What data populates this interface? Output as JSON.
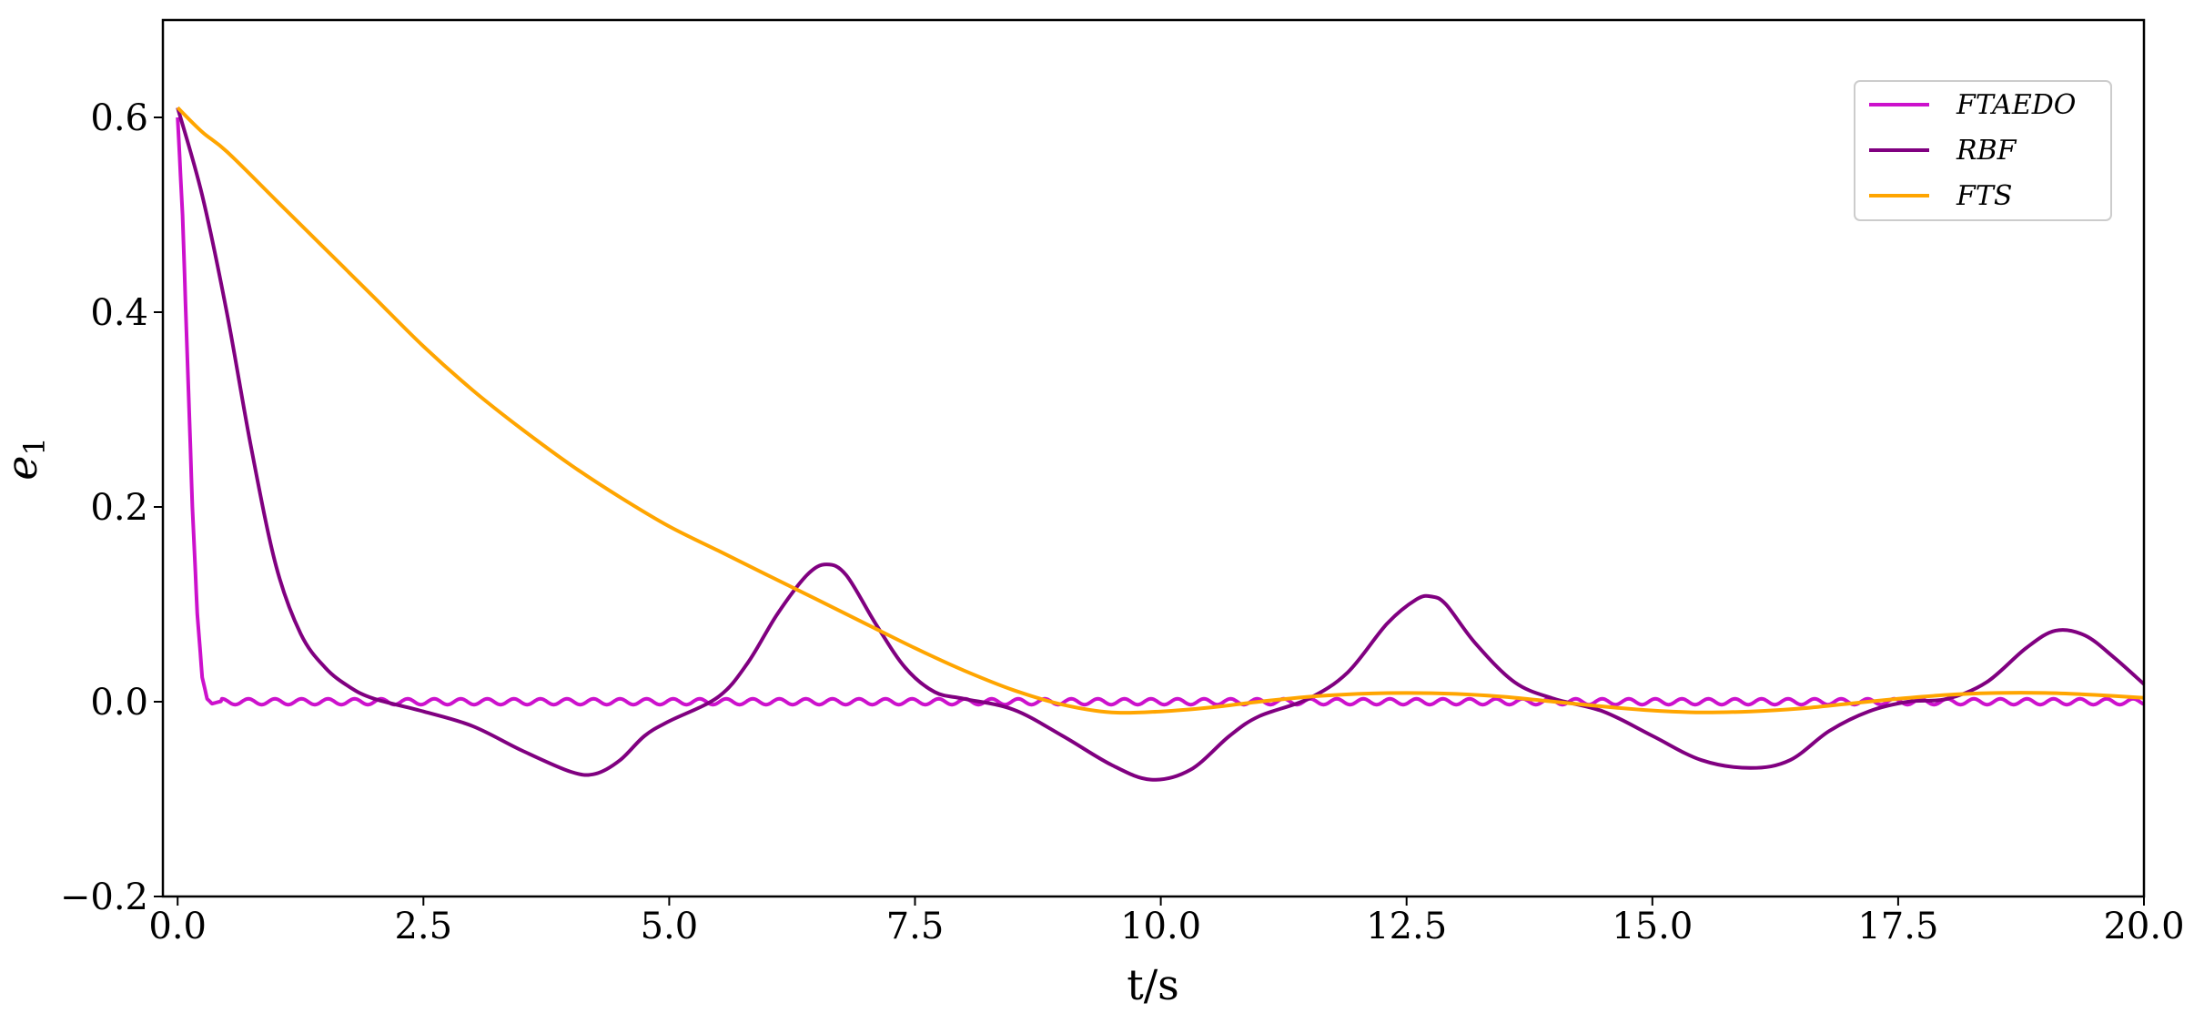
{
  "chart_data": {
    "type": "line",
    "title": "",
    "xlabel": "t/s",
    "ylabel": "e",
    "ylabel_sub": "1",
    "xlim": [
      -0.15,
      20.0
    ],
    "ylim": [
      -0.2,
      0.7
    ],
    "xticks": [
      0.0,
      2.5,
      5.0,
      7.5,
      10.0,
      12.5,
      15.0,
      17.5,
      20.0
    ],
    "xtick_labels": [
      "0.0",
      "2.5",
      "5.0",
      "7.5",
      "10.0",
      "12.5",
      "15.0",
      "17.5",
      "20.0"
    ],
    "yticks": [
      -0.2,
      0.0,
      0.2,
      0.4,
      0.6
    ],
    "ytick_labels": [
      "−0.2",
      "0.0",
      "0.2",
      "0.4",
      "0.6"
    ],
    "grid": false,
    "legend_position": "top-right",
    "series": [
      {
        "name": "FTAEDO",
        "color": "#cc11cc",
        "model": "fast_decay_oscillation",
        "x": [
          0.0,
          0.05,
          0.1,
          0.15,
          0.2,
          0.25,
          0.3,
          0.35,
          0.5,
          1.0,
          5.0,
          10.0,
          15.0,
          20.0
        ],
        "values": [
          0.6,
          0.5,
          0.35,
          0.2,
          0.09,
          0.025,
          0.003,
          -0.002,
          0.002,
          0.0,
          0.0,
          0.0,
          0.0,
          0.0
        ]
      },
      {
        "name": "RBF",
        "color": "#800080",
        "model": "interpolated",
        "x": [
          0.0,
          0.25,
          0.5,
          0.75,
          1.0,
          1.25,
          1.5,
          1.75,
          2.0,
          2.5,
          3.0,
          3.5,
          4.0,
          4.25,
          4.5,
          4.75,
          5.0,
          5.5,
          5.8,
          6.1,
          6.4,
          6.6,
          6.8,
          7.1,
          7.4,
          7.7,
          8.0,
          8.5,
          9.0,
          9.5,
          9.9,
          10.3,
          10.7,
          11.0,
          11.5,
          11.9,
          12.3,
          12.6,
          12.75,
          12.9,
          13.2,
          13.6,
          14.0,
          14.5,
          15.0,
          15.5,
          16.0,
          16.4,
          16.8,
          17.2,
          17.6,
          18.0,
          18.4,
          18.8,
          19.1,
          19.4,
          19.7,
          20.0
        ],
        "values": [
          0.61,
          0.52,
          0.4,
          0.26,
          0.14,
          0.07,
          0.035,
          0.015,
          0.003,
          -0.01,
          -0.025,
          -0.05,
          -0.072,
          -0.074,
          -0.06,
          -0.035,
          -0.02,
          0.005,
          0.04,
          0.09,
          0.13,
          0.141,
          0.13,
          0.08,
          0.035,
          0.01,
          0.003,
          -0.008,
          -0.035,
          -0.065,
          -0.08,
          -0.07,
          -0.035,
          -0.015,
          0.003,
          0.03,
          0.08,
          0.105,
          0.108,
          0.1,
          0.06,
          0.02,
          0.003,
          -0.01,
          -0.035,
          -0.06,
          -0.068,
          -0.06,
          -0.03,
          -0.01,
          0.0,
          0.003,
          0.02,
          0.055,
          0.073,
          0.068,
          0.045,
          0.018
        ]
      },
      {
        "name": "FTS",
        "color": "#ffa500",
        "model": "interpolated",
        "x": [
          0.0,
          0.25,
          0.5,
          1.0,
          1.5,
          2.0,
          2.5,
          3.0,
          3.5,
          4.0,
          4.5,
          5.0,
          5.5,
          6.0,
          6.5,
          7.0,
          7.5,
          8.0,
          8.5,
          9.0,
          9.5,
          10.0,
          10.5,
          11.0,
          11.5,
          12.0,
          12.5,
          13.0,
          13.5,
          14.0,
          14.5,
          15.0,
          15.5,
          16.0,
          16.5,
          17.0,
          17.5,
          18.0,
          18.5,
          19.0,
          19.5,
          20.0
        ],
        "values": [
          0.61,
          0.585,
          0.565,
          0.515,
          0.465,
          0.415,
          0.365,
          0.32,
          0.28,
          0.243,
          0.21,
          0.18,
          0.155,
          0.13,
          0.105,
          0.08,
          0.055,
          0.032,
          0.012,
          -0.003,
          -0.011,
          -0.01,
          -0.006,
          0.0,
          0.005,
          0.008,
          0.009,
          0.008,
          0.005,
          0.0,
          -0.005,
          -0.009,
          -0.011,
          -0.01,
          -0.007,
          -0.002,
          0.003,
          0.007,
          0.009,
          0.009,
          0.007,
          0.004
        ]
      }
    ]
  }
}
